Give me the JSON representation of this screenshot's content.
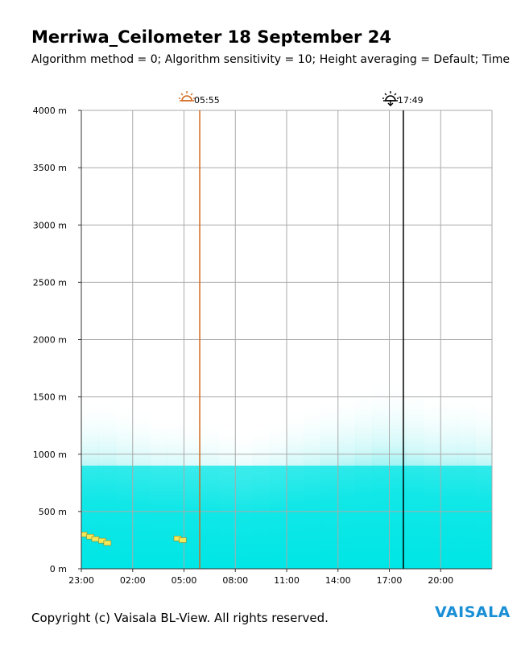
{
  "header": {
    "title": "Merriwa_Ceilometer 18 September 24",
    "subtitle": "Algorithm method = 0; Algorithm sensitivity = 10; Height averaging = Default; Time"
  },
  "footer": {
    "copyright": "Copyright (c) Vaisala BL-View. All rights reserved.",
    "brand": "VAISALA"
  },
  "chart_data": {
    "type": "heatmap",
    "title": "Merriwa_Ceilometer 18 September 24",
    "x_tick_labels": [
      "23:00",
      "02:00",
      "05:00",
      "08:00",
      "11:00",
      "14:00",
      "17:00",
      "20:00"
    ],
    "x_tick_hours": [
      -1,
      2,
      5,
      8,
      11,
      14,
      17,
      20
    ],
    "x_range_hours": [
      -1,
      23
    ],
    "y_tick_labels": [
      "0 m",
      "500 m",
      "1000 m",
      "1500 m",
      "2000 m",
      "2500 m",
      "3000 m",
      "3500 m",
      "4000 m"
    ],
    "y_ticks_m": [
      0,
      500,
      1000,
      1500,
      2000,
      2500,
      3000,
      3500,
      4000
    ],
    "ylim": [
      0,
      4000
    ],
    "grid": true,
    "sunrise": {
      "label": "05:55",
      "hour": 5.92,
      "color": "#d2691e"
    },
    "sunset": {
      "label": "17:49",
      "hour": 17.82,
      "color": "#000000"
    },
    "backscatter_top_m": [
      1500,
      1500,
      1450,
      1400,
      1350,
      1350,
      1300,
      1300,
      1250,
      1200,
      1250,
      1300,
      1400,
      1450,
      1500,
      1550,
      1600,
      1650,
      1650,
      1600,
      1550,
      1550,
      1550,
      1500
    ],
    "cloud_base_points": [
      {
        "hour": -0.9,
        "height_m": 300
      },
      {
        "hour": -0.5,
        "height_m": 280
      },
      {
        "hour": -0.2,
        "height_m": 260
      },
      {
        "hour": 0.2,
        "height_m": 245
      },
      {
        "hour": 0.5,
        "height_m": 225
      },
      {
        "hour": 4.6,
        "height_m": 265
      },
      {
        "hour": 4.9,
        "height_m": 250
      }
    ],
    "colors": {
      "backscatter": "#00e5e5",
      "cloud_base": "#f2e85a",
      "grid": "#aaaaaa",
      "axis": "#333333"
    }
  }
}
